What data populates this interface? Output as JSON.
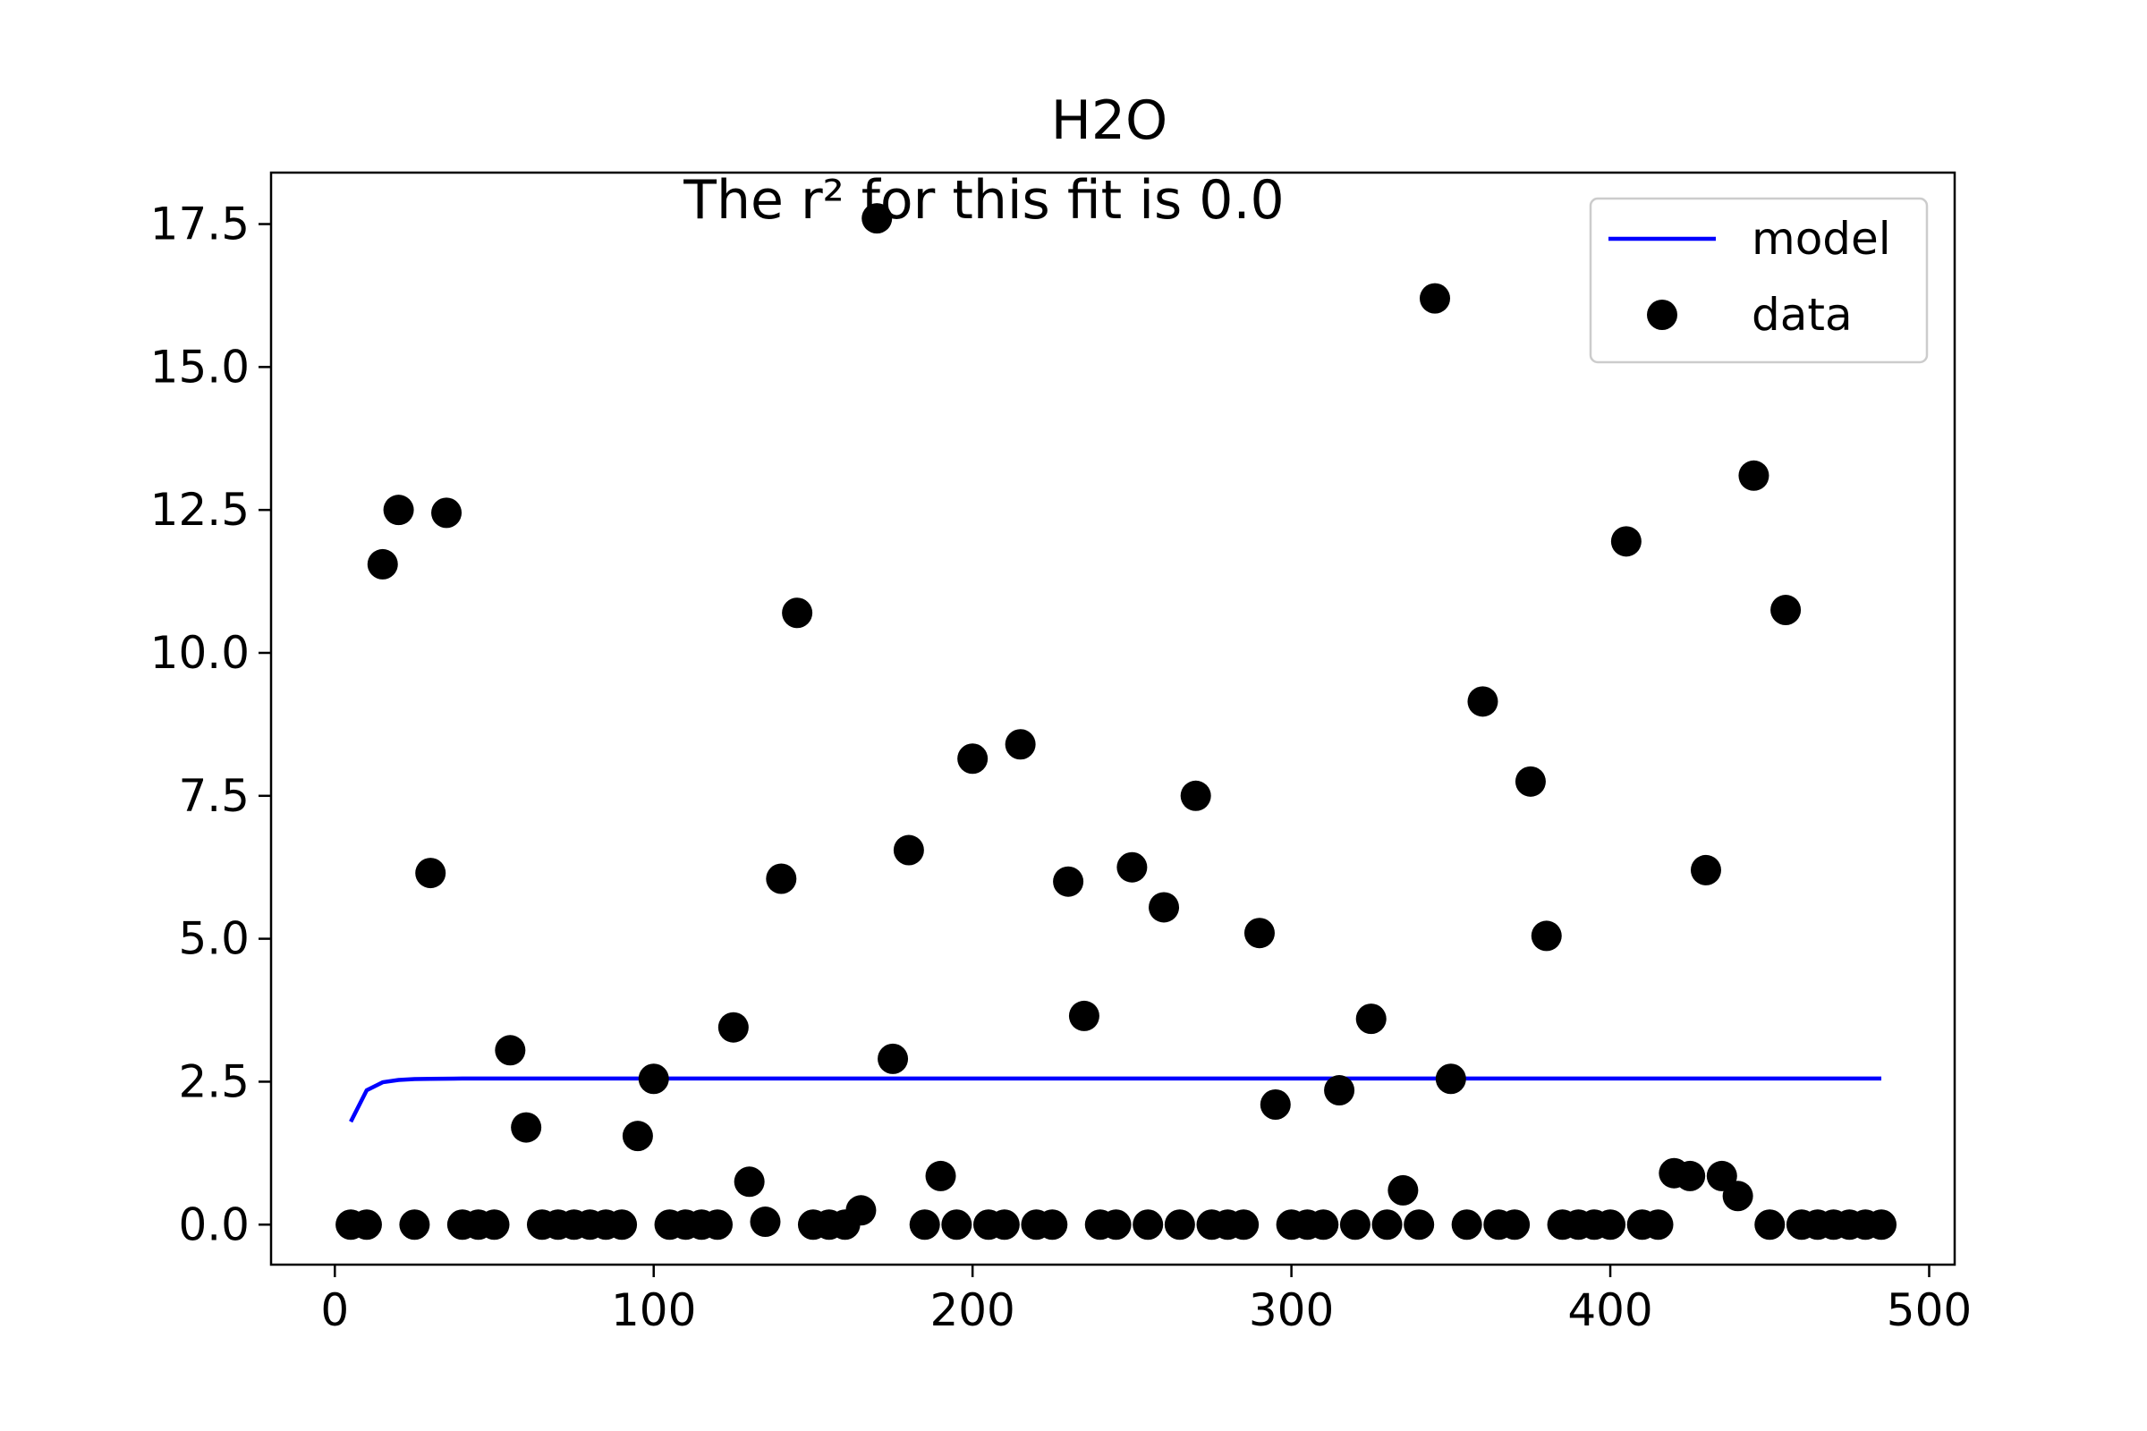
{
  "chart_data": {
    "type": "scatter",
    "title": "H2O",
    "annotation": "The r² for this fit is 0.0",
    "xlabel": "",
    "ylabel": "",
    "xlim": [
      -20,
      508
    ],
    "ylim": [
      -0.7,
      18.4
    ],
    "xticks": [
      0,
      100,
      200,
      300,
      400,
      500
    ],
    "xtick_labels": [
      "0",
      "100",
      "200",
      "300",
      "400",
      "500"
    ],
    "yticks": [
      0,
      2.5,
      5,
      7.5,
      10,
      12.5,
      15,
      17.5
    ],
    "ytick_labels": [
      "0.0",
      "2.5",
      "5.0",
      "7.5",
      "10.0",
      "12.5",
      "15.0",
      "17.5"
    ],
    "grid": false,
    "legend_position": "top-right",
    "legend": [
      {
        "label": "model",
        "kind": "line",
        "color": "#0000ff"
      },
      {
        "label": "data",
        "kind": "marker",
        "color": "#000000"
      }
    ],
    "series": [
      {
        "name": "model",
        "kind": "line",
        "color": "#0000ff",
        "x": [
          5,
          10,
          15,
          20,
          25,
          30,
          40,
          60,
          100,
          200,
          300,
          400,
          485
        ],
        "y": [
          1.8,
          2.35,
          2.49,
          2.53,
          2.545,
          2.55,
          2.555,
          2.555,
          2.555,
          2.555,
          2.555,
          2.555,
          2.555
        ]
      },
      {
        "name": "data",
        "kind": "scatter",
        "color": "#000000",
        "points": [
          [
            5,
            0
          ],
          [
            10,
            0
          ],
          [
            15,
            11.55
          ],
          [
            20,
            12.5
          ],
          [
            25,
            0
          ],
          [
            30,
            6.15
          ],
          [
            35,
            12.45
          ],
          [
            40,
            0
          ],
          [
            45,
            0
          ],
          [
            50,
            0
          ],
          [
            55,
            3.05
          ],
          [
            60,
            1.7
          ],
          [
            65,
            0
          ],
          [
            70,
            0
          ],
          [
            75,
            0
          ],
          [
            80,
            0
          ],
          [
            85,
            0
          ],
          [
            90,
            0
          ],
          [
            95,
            1.55
          ],
          [
            100,
            2.55
          ],
          [
            105,
            0
          ],
          [
            110,
            0
          ],
          [
            115,
            0
          ],
          [
            120,
            0
          ],
          [
            125,
            3.45
          ],
          [
            130,
            0.75
          ],
          [
            135,
            0.05
          ],
          [
            140,
            6.05
          ],
          [
            145,
            10.7
          ],
          [
            150,
            0
          ],
          [
            155,
            0
          ],
          [
            160,
            0
          ],
          [
            165,
            0.25
          ],
          [
            170,
            17.6
          ],
          [
            175,
            2.9
          ],
          [
            180,
            6.55
          ],
          [
            185,
            0
          ],
          [
            190,
            0.85
          ],
          [
            195,
            0
          ],
          [
            200,
            8.15
          ],
          [
            205,
            0
          ],
          [
            210,
            0
          ],
          [
            215,
            8.4
          ],
          [
            220,
            0
          ],
          [
            225,
            0
          ],
          [
            230,
            6.0
          ],
          [
            235,
            3.65
          ],
          [
            240,
            0
          ],
          [
            245,
            0
          ],
          [
            250,
            6.25
          ],
          [
            255,
            0
          ],
          [
            260,
            5.55
          ],
          [
            265,
            0
          ],
          [
            270,
            7.5
          ],
          [
            275,
            0
          ],
          [
            280,
            0
          ],
          [
            285,
            0
          ],
          [
            290,
            5.1
          ],
          [
            295,
            2.1
          ],
          [
            300,
            0
          ],
          [
            305,
            0
          ],
          [
            310,
            0
          ],
          [
            315,
            2.35
          ],
          [
            320,
            0
          ],
          [
            325,
            3.6
          ],
          [
            330,
            0
          ],
          [
            335,
            0.6
          ],
          [
            340,
            0
          ],
          [
            345,
            16.2
          ],
          [
            350,
            2.55
          ],
          [
            355,
            0
          ],
          [
            360,
            9.15
          ],
          [
            365,
            0
          ],
          [
            370,
            0
          ],
          [
            375,
            7.75
          ],
          [
            380,
            5.05
          ],
          [
            385,
            0
          ],
          [
            390,
            0
          ],
          [
            395,
            0
          ],
          [
            400,
            0
          ],
          [
            405,
            11.95
          ],
          [
            410,
            0
          ],
          [
            415,
            0
          ],
          [
            420,
            0.9
          ],
          [
            425,
            0.85
          ],
          [
            430,
            6.2
          ],
          [
            435,
            0.85
          ],
          [
            440,
            0.5
          ],
          [
            445,
            13.1
          ],
          [
            450,
            0
          ],
          [
            455,
            10.75
          ],
          [
            460,
            0
          ],
          [
            465,
            0
          ],
          [
            470,
            0
          ],
          [
            475,
            0
          ],
          [
            480,
            0
          ],
          [
            485,
            0
          ]
        ]
      }
    ]
  }
}
